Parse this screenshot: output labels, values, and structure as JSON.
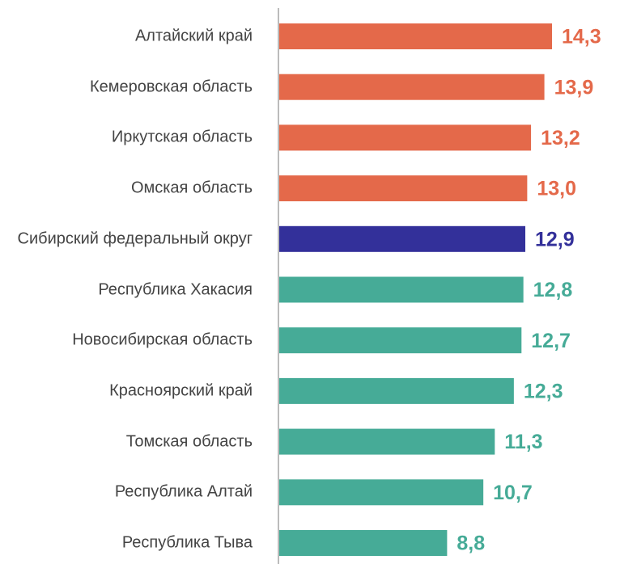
{
  "chart_data": {
    "type": "bar",
    "orientation": "horizontal",
    "categories": [
      "Алтайский край",
      "Кемеровская область",
      "Иркутская область",
      "Омская область",
      "Сибирский федеральный округ",
      "Республика Хакасия",
      "Новосибирская область",
      "Красноярский край",
      "Томская область",
      "Республика Алтай",
      "Республика Тыва"
    ],
    "values": [
      14.3,
      13.9,
      13.2,
      13.0,
      12.9,
      12.8,
      12.7,
      12.3,
      11.3,
      10.7,
      8.8
    ],
    "value_labels": [
      "14,3",
      "13,9",
      "13,2",
      "13,0",
      "12,9",
      "12,8",
      "12,7",
      "12,3",
      "11,3",
      "10,7",
      "8,8"
    ],
    "colors": [
      "#e4694a",
      "#e4694a",
      "#e4694a",
      "#e4694a",
      "#33309a",
      "#46ab97",
      "#46ab97",
      "#46ab97",
      "#46ab97",
      "#46ab97",
      "#46ab97"
    ]
  }
}
